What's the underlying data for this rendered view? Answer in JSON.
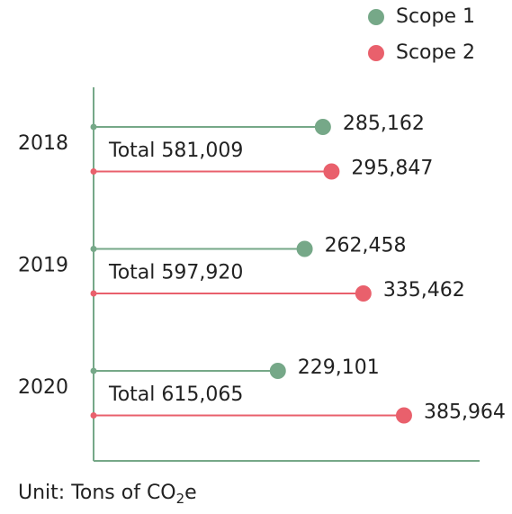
{
  "chart_data": {
    "type": "lollipop",
    "categories": [
      "2018",
      "2019",
      "2020"
    ],
    "series": [
      {
        "name": "Scope 1",
        "color": "#76a888",
        "values": [
          285162,
          262458,
          229101
        ],
        "value_labels": [
          "285,162",
          "262,458",
          "229,101"
        ]
      },
      {
        "name": "Scope 2",
        "color": "#e9606c",
        "values": [
          295847,
          335462,
          385964
        ],
        "value_labels": [
          "295,847",
          "335,462",
          "385,964"
        ]
      }
    ],
    "annotations": [
      "Total 581,009",
      "Total 597,920",
      "Total 615,065"
    ],
    "unit": {
      "text": "Unit: Tons of CO",
      "sub": "2",
      "suffix": "e"
    },
    "xlim": [
      0,
      480000
    ],
    "legend": "top-right"
  }
}
